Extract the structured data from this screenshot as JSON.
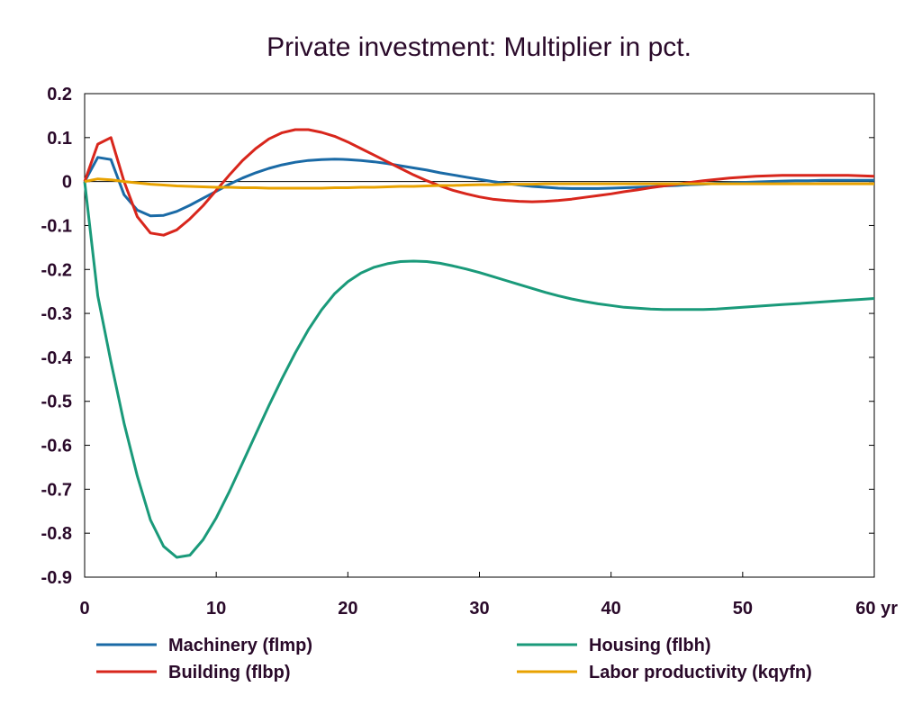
{
  "chart_data": {
    "type": "line",
    "title": "Private investment: Multiplier in pct.",
    "x_unit_label": "yr",
    "xlim": [
      0,
      60
    ],
    "ylim": [
      -0.9,
      0.2
    ],
    "xticks": [
      "0",
      "10",
      "20",
      "30",
      "40",
      "50",
      "60 yr"
    ],
    "xtick_values": [
      0,
      10,
      20,
      30,
      40,
      50,
      60
    ],
    "yticks": [
      "0.2",
      "0.1",
      "0",
      "-0.1",
      "-0.2",
      "-0.3",
      "-0.4",
      "-0.5",
      "-0.6",
      "-0.7",
      "-0.8",
      "-0.9"
    ],
    "ytick_values": [
      0.2,
      0.1,
      0,
      -0.1,
      -0.2,
      -0.3,
      -0.4,
      -0.5,
      -0.6,
      -0.7,
      -0.8,
      -0.9
    ],
    "grid": false,
    "zero_line": true,
    "legend_position": "bottom",
    "x": [
      0,
      1,
      2,
      3,
      4,
      5,
      6,
      7,
      8,
      9,
      10,
      11,
      12,
      13,
      14,
      15,
      16,
      17,
      18,
      19,
      20,
      21,
      22,
      23,
      24,
      25,
      26,
      27,
      28,
      29,
      30,
      31,
      32,
      33,
      34,
      35,
      36,
      37,
      38,
      39,
      40,
      41,
      42,
      43,
      44,
      45,
      46,
      47,
      48,
      49,
      50,
      51,
      52,
      53,
      54,
      55,
      56,
      57,
      58,
      59,
      60
    ],
    "series": [
      {
        "name": "Machinery (flmp)",
        "color": "#1a6aa6",
        "values": [
          0,
          0.055,
          0.05,
          -0.03,
          -0.065,
          -0.078,
          -0.077,
          -0.068,
          -0.054,
          -0.038,
          -0.022,
          -0.006,
          0.008,
          0.02,
          0.03,
          0.038,
          0.044,
          0.048,
          0.05,
          0.051,
          0.05,
          0.048,
          0.045,
          0.041,
          0.036,
          0.031,
          0.026,
          0.02,
          0.015,
          0.01,
          0.005,
          0.0,
          -0.004,
          -0.008,
          -0.011,
          -0.013,
          -0.015,
          -0.016,
          -0.016,
          -0.016,
          -0.015,
          -0.014,
          -0.013,
          -0.012,
          -0.01,
          -0.009,
          -0.007,
          -0.006,
          -0.004,
          -0.003,
          -0.002,
          -0.001,
          0.0,
          0.001,
          0.002,
          0.002,
          0.003,
          0.003,
          0.003,
          0.003,
          0.003
        ]
      },
      {
        "name": "Building (flbp)",
        "color": "#d8261c",
        "values": [
          0,
          0.085,
          0.1,
          0.0,
          -0.08,
          -0.117,
          -0.122,
          -0.11,
          -0.085,
          -0.055,
          -0.02,
          0.015,
          0.048,
          0.075,
          0.097,
          0.111,
          0.118,
          0.118,
          0.112,
          0.103,
          0.09,
          0.075,
          0.06,
          0.045,
          0.03,
          0.015,
          0.002,
          -0.01,
          -0.02,
          -0.028,
          -0.035,
          -0.04,
          -0.043,
          -0.045,
          -0.046,
          -0.045,
          -0.043,
          -0.04,
          -0.036,
          -0.032,
          -0.028,
          -0.023,
          -0.019,
          -0.014,
          -0.01,
          -0.006,
          -0.002,
          0.002,
          0.005,
          0.008,
          0.01,
          0.012,
          0.013,
          0.014,
          0.014,
          0.014,
          0.014,
          0.014,
          0.014,
          0.013,
          0.012
        ]
      },
      {
        "name": "Housing (flbh)",
        "color": "#1a9a7a",
        "values": [
          0,
          -0.26,
          -0.41,
          -0.55,
          -0.67,
          -0.77,
          -0.83,
          -0.855,
          -0.85,
          -0.815,
          -0.765,
          -0.705,
          -0.64,
          -0.575,
          -0.51,
          -0.448,
          -0.39,
          -0.337,
          -0.292,
          -0.255,
          -0.228,
          -0.208,
          -0.195,
          -0.187,
          -0.182,
          -0.181,
          -0.182,
          -0.186,
          -0.192,
          -0.199,
          -0.207,
          -0.216,
          -0.225,
          -0.234,
          -0.243,
          -0.252,
          -0.26,
          -0.267,
          -0.273,
          -0.278,
          -0.282,
          -0.286,
          -0.288,
          -0.29,
          -0.291,
          -0.291,
          -0.291,
          -0.291,
          -0.29,
          -0.288,
          -0.286,
          -0.284,
          -0.282,
          -0.28,
          -0.278,
          -0.276,
          -0.274,
          -0.272,
          -0.27,
          -0.268,
          -0.266
        ]
      },
      {
        "name": "Labor productivity (kqyfn)",
        "color": "#e8a200",
        "values": [
          0,
          0.006,
          0.004,
          0.0,
          -0.003,
          -0.006,
          -0.008,
          -0.01,
          -0.011,
          -0.012,
          -0.013,
          -0.013,
          -0.014,
          -0.014,
          -0.015,
          -0.015,
          -0.015,
          -0.015,
          -0.015,
          -0.014,
          -0.014,
          -0.013,
          -0.013,
          -0.012,
          -0.011,
          -0.011,
          -0.01,
          -0.009,
          -0.009,
          -0.008,
          -0.007,
          -0.007,
          -0.006,
          -0.006,
          -0.006,
          -0.005,
          -0.005,
          -0.005,
          -0.005,
          -0.005,
          -0.005,
          -0.005,
          -0.005,
          -0.005,
          -0.005,
          -0.005,
          -0.005,
          -0.005,
          -0.005,
          -0.005,
          -0.005,
          -0.005,
          -0.005,
          -0.005,
          -0.005,
          -0.005,
          -0.005,
          -0.005,
          -0.005,
          -0.005,
          -0.005
        ]
      }
    ]
  }
}
